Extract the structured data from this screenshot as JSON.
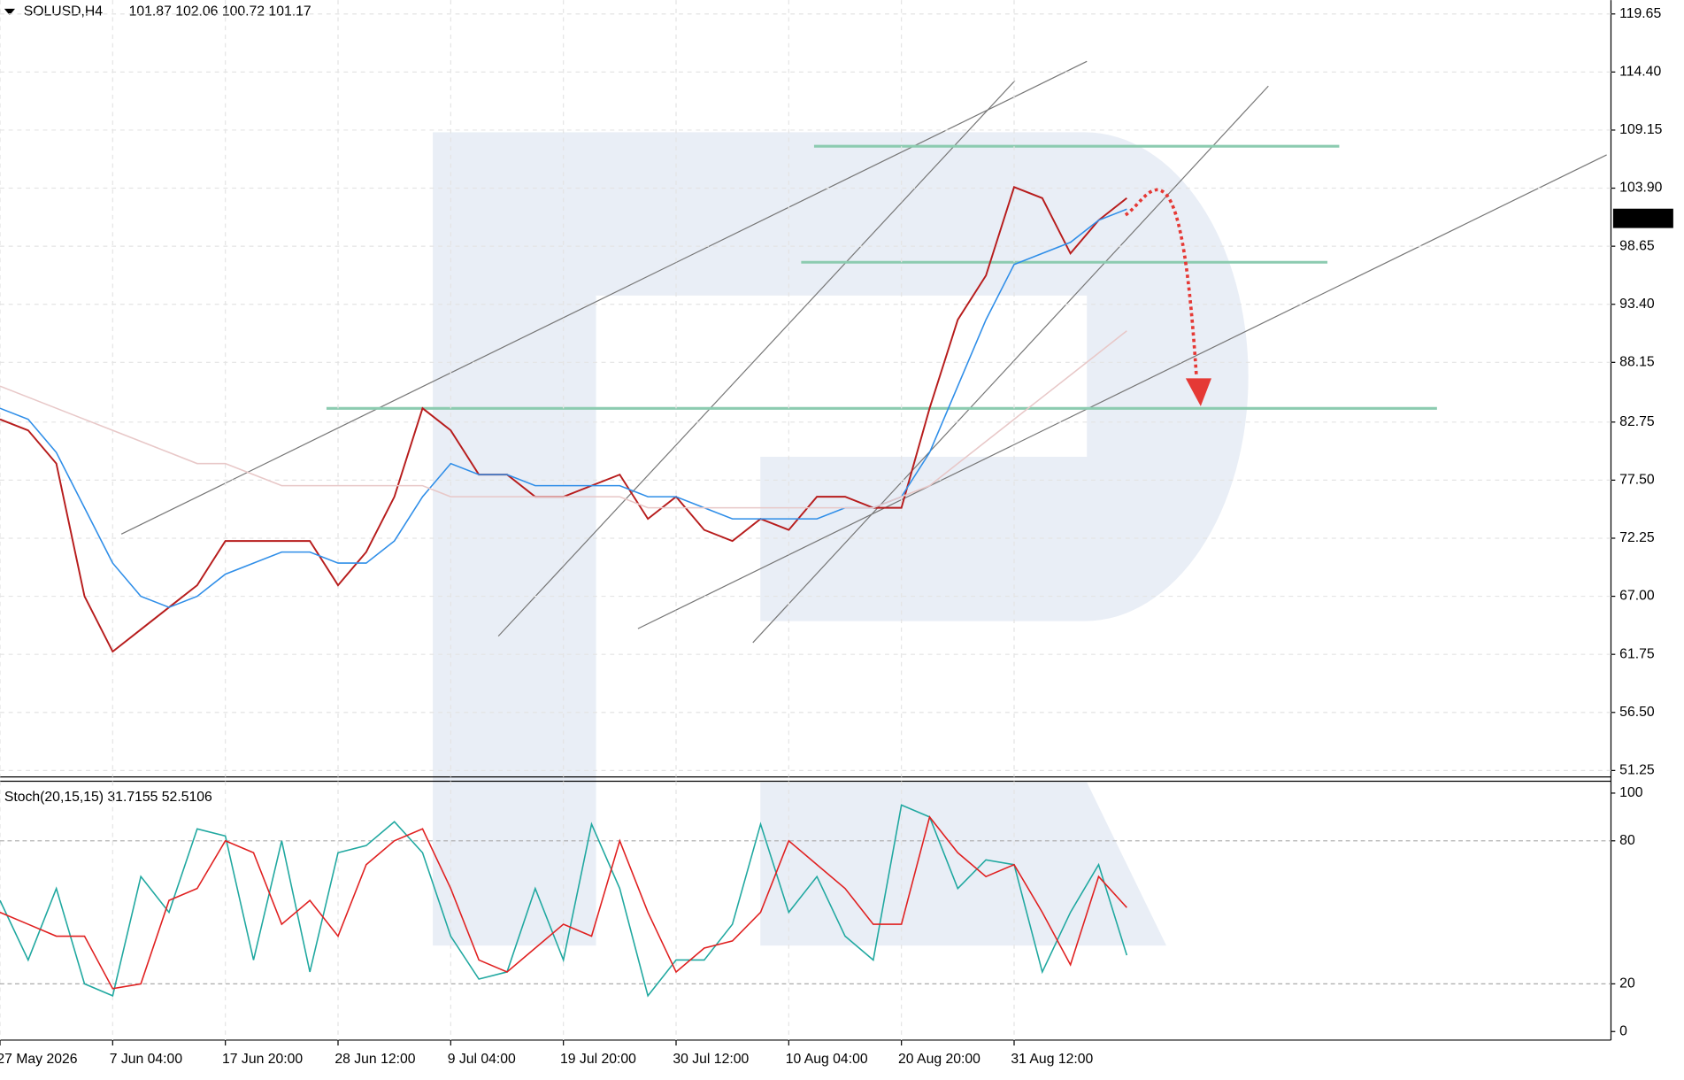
{
  "chart_data": [
    {
      "type": "line",
      "title": "SOLUSD,H4",
      "subtitle": "101.87 102.06 100.72 101.17",
      "x": [
        0,
        16,
        32,
        48,
        64,
        80,
        96,
        112,
        128,
        144,
        160,
        176,
        192,
        208,
        224,
        240,
        256,
        272,
        288,
        304,
        320,
        336,
        352,
        368,
        384,
        400,
        416,
        432,
        448,
        464,
        480,
        496,
        512,
        528,
        544,
        560,
        576,
        592,
        608,
        624,
        640
      ],
      "xlim": [
        0,
        915
      ],
      "xticks": [
        {
          "value": 0,
          "label": "27 May 2026"
        },
        {
          "value": 64,
          "label": "7 Jun 04:00"
        },
        {
          "value": 128,
          "label": "17 Jun 20:00"
        },
        {
          "value": 192,
          "label": "28 Jun 12:00"
        },
        {
          "value": 256,
          "label": "9 Jul 04:00"
        },
        {
          "value": 320,
          "label": "19 Jul 20:00"
        },
        {
          "value": 384,
          "label": "30 Jul 12:00"
        },
        {
          "value": 448,
          "label": "10 Aug 04:00"
        },
        {
          "value": 512,
          "label": "20 Aug 20:00"
        },
        {
          "value": 576,
          "label": "31 Aug 12:00"
        }
      ],
      "ylim": [
        50.67,
        120.9
      ],
      "yticks": [
        119.65,
        {
          "value": 114.4,
          "label": "114.40"
        },
        109.15,
        {
          "value": 103.9,
          "label": "103.90"
        },
        98.65,
        {
          "value": 93.4,
          "label": "93.40"
        },
        88.15,
        82.75,
        {
          "value": 77.5,
          "label": "77.50"
        },
        72.25,
        {
          "value": 67,
          "label": "67.00"
        },
        61.75,
        {
          "value": 56.5,
          "label": "56.50"
        },
        51.25
      ],
      "last_price": 101.17,
      "grid": true,
      "series": [
        {
          "color": "#b71c1c",
          "values": [
            83,
            82,
            79,
            67,
            62,
            64,
            66,
            68,
            72,
            72,
            72,
            72,
            68,
            71,
            76,
            84,
            82,
            78,
            78,
            76,
            76,
            77,
            78,
            74,
            76,
            73,
            72,
            74,
            73,
            76,
            76,
            75,
            75,
            84,
            92,
            96,
            104,
            103,
            98,
            101,
            103
          ]
        },
        {
          "color": "#2f8ee8",
          "values": [
            84,
            83,
            80,
            75,
            70,
            67,
            66,
            67,
            69,
            70,
            71,
            71,
            70,
            70,
            72,
            76,
            79,
            78,
            78,
            77,
            77,
            77,
            77,
            76,
            76,
            75,
            74,
            74,
            74,
            74,
            75,
            75,
            76,
            80,
            86,
            92,
            97,
            98,
            99,
            101,
            102
          ]
        },
        {
          "color": "#e8c8c8",
          "values": [
            86,
            85,
            84,
            83,
            82,
            81,
            80,
            79,
            79,
            78,
            77,
            77,
            77,
            77,
            77,
            77,
            76,
            76,
            76,
            76,
            76,
            76,
            76,
            75,
            75,
            75,
            75,
            75,
            75,
            75,
            75,
            75,
            76,
            77,
            79,
            81,
            83,
            85,
            87,
            89,
            91
          ]
        }
      ]
    },
    {
      "type": "line",
      "title": "Stoch(20,15,15) 31.7155 52.5106",
      "x": [
        0,
        16,
        32,
        48,
        64,
        80,
        96,
        112,
        128,
        144,
        160,
        176,
        192,
        208,
        224,
        240,
        256,
        272,
        288,
        304,
        320,
        336,
        352,
        368,
        384,
        400,
        416,
        432,
        448,
        464,
        480,
        496,
        512,
        528,
        544,
        560,
        576,
        592,
        608,
        624,
        640
      ],
      "xlim": [
        0,
        915
      ],
      "ylim": [
        -3.6,
        105
      ],
      "yticks": [
        100,
        80,
        20,
        0
      ],
      "series": [
        {
          "color": "#20a8a0",
          "values": [
            55,
            30,
            60,
            20,
            15,
            65,
            50,
            85,
            82,
            30,
            80,
            25,
            75,
            78,
            88,
            75,
            40,
            22,
            25,
            60,
            30,
            87,
            60,
            15,
            30,
            30,
            45,
            87,
            50,
            65,
            40,
            30,
            95,
            90,
            60,
            72,
            70,
            25,
            50,
            70,
            32
          ]
        },
        {
          "color": "#e02020",
          "values": [
            50,
            45,
            40,
            40,
            18,
            20,
            55,
            60,
            80,
            75,
            45,
            55,
            40,
            70,
            80,
            85,
            60,
            30,
            25,
            35,
            45,
            40,
            80,
            50,
            25,
            35,
            38,
            50,
            80,
            70,
            60,
            45,
            45,
            90,
            75,
            65,
            70,
            50,
            28,
            65,
            52
          ]
        }
      ]
    }
  ]
}
